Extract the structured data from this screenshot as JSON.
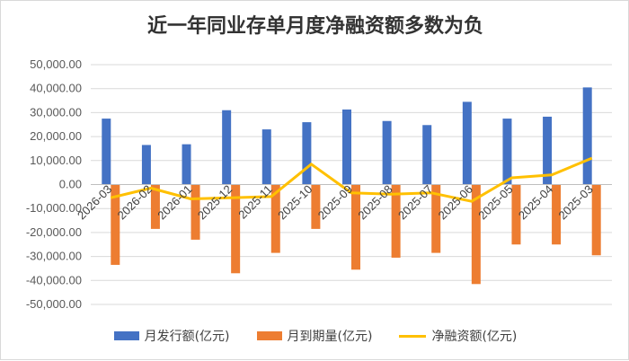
{
  "chart_data": {
    "type": "bar",
    "title": "近一年同业存单月度净融资额多数为负",
    "xlabel": "",
    "ylabel": "",
    "ylim": [
      -50000,
      50000
    ],
    "ytick_step": 10000,
    "ytick_labels": [
      "50,000.00",
      "40,000.00",
      "30,000.00",
      "20,000.00",
      "10,000.00",
      "0.00",
      "-10,000.00",
      "-20,000.00",
      "-30,000.00",
      "-40,000.00",
      "-50,000.00"
    ],
    "categories": [
      "2026-03",
      "2026-02",
      "2026-01",
      "2025-12",
      "2025-11",
      "2025-10",
      "2025-09",
      "2025-08",
      "2025-07",
      "2025-06",
      "2025-05",
      "2025-04",
      "2025-03"
    ],
    "series": [
      {
        "name": "月发行额(亿元)",
        "kind": "bar",
        "color": "#4472C4",
        "values": [
          27500,
          16500,
          16800,
          31000,
          23000,
          26000,
          31300,
          26500,
          24800,
          34500,
          27500,
          28300,
          40500
        ]
      },
      {
        "name": "月到期量(亿元)",
        "kind": "bar",
        "color": "#ED7D31",
        "values": [
          -33500,
          -18500,
          -23000,
          -37000,
          -28500,
          -18500,
          -35500,
          -30500,
          -28500,
          -41500,
          -25000,
          -25000,
          -29500
        ]
      },
      {
        "name": "净融资额(亿元)",
        "kind": "line",
        "color": "#FFC000",
        "values": [
          -5500,
          -1500,
          -6000,
          -5500,
          -5000,
          8500,
          -3500,
          -4000,
          -3500,
          -7000,
          2800,
          4000,
          11000
        ]
      }
    ],
    "grid": "y-major",
    "legend": "bottom"
  }
}
